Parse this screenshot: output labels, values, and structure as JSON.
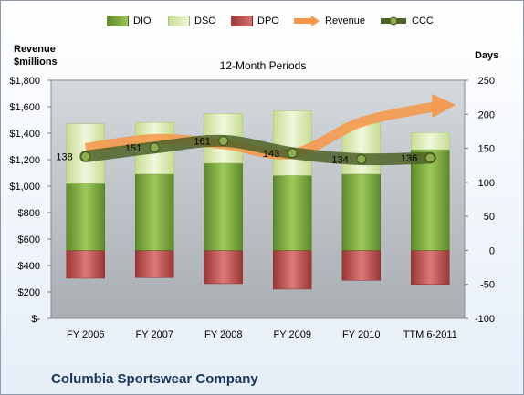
{
  "legend": [
    {
      "label": "DIO",
      "color": "#77a33b",
      "kind": "box"
    },
    {
      "label": "DSO",
      "color": "#d8eab0",
      "kind": "box"
    },
    {
      "label": "DPO",
      "color": "#c0504d",
      "kind": "box"
    },
    {
      "label": "Revenue",
      "color": "#f79646",
      "kind": "arrow"
    },
    {
      "label": "CCC",
      "color": "#4f6228",
      "kind": "line"
    }
  ],
  "axis_left_title": [
    "Revenue",
    "$millions"
  ],
  "axis_right_title": "Days",
  "company": "Columbia Sportswear Company",
  "chart_data": {
    "type": "bar",
    "title": "12-Month Periods",
    "categories": [
      "FY 2006",
      "FY 2007",
      "FY 2008",
      "FY 2009",
      "FY 2010",
      "TTM 6-2011"
    ],
    "y_left": {
      "label": "Revenue $millions",
      "range": [
        0,
        1800
      ],
      "ticks": [
        0,
        200,
        400,
        600,
        800,
        1000,
        1200,
        1400,
        1600,
        1800
      ],
      "tick_labels": [
        "$-",
        "$200",
        "$400",
        "$600",
        "$800",
        "$1,000",
        "$1,200",
        "$1,400",
        "$1,600",
        "$1,800"
      ]
    },
    "y_right": {
      "label": "Days",
      "range": [
        -100,
        250
      ],
      "ticks": [
        -100,
        -50,
        0,
        50,
        100,
        150,
        200,
        250
      ],
      "tick_labels": [
        "-100",
        "-50",
        "0",
        "50",
        "100",
        "150",
        "200",
        "250"
      ]
    },
    "series": [
      {
        "name": "DIO",
        "axis": "right",
        "stacked": true,
        "color": "#77a33b",
        "values": [
          98,
          112,
          128,
          110,
          112,
          148
        ]
      },
      {
        "name": "DSO",
        "axis": "right",
        "stacked": true,
        "color": "#d8eab0",
        "values": [
          88,
          76,
          73,
          95,
          75,
          25
        ]
      },
      {
        "name": "DPO",
        "axis": "right",
        "stacked": true,
        "color": "#c0504d",
        "values": [
          -41,
          -40,
          -49,
          -57,
          -44,
          -50
        ]
      },
      {
        "name": "Revenue",
        "axis": "left",
        "type": "line",
        "color": "#f79646",
        "values": [
          1287,
          1356,
          1318,
          1244,
          1484,
          1600
        ]
      },
      {
        "name": "CCC",
        "axis": "right",
        "type": "line",
        "color": "#4f6228",
        "values": [
          138,
          151,
          161,
          143,
          134,
          136
        ],
        "labels": [
          "138",
          "151",
          "161",
          "143",
          "134",
          "136"
        ]
      }
    ],
    "grid": false,
    "legend_position": "top"
  }
}
